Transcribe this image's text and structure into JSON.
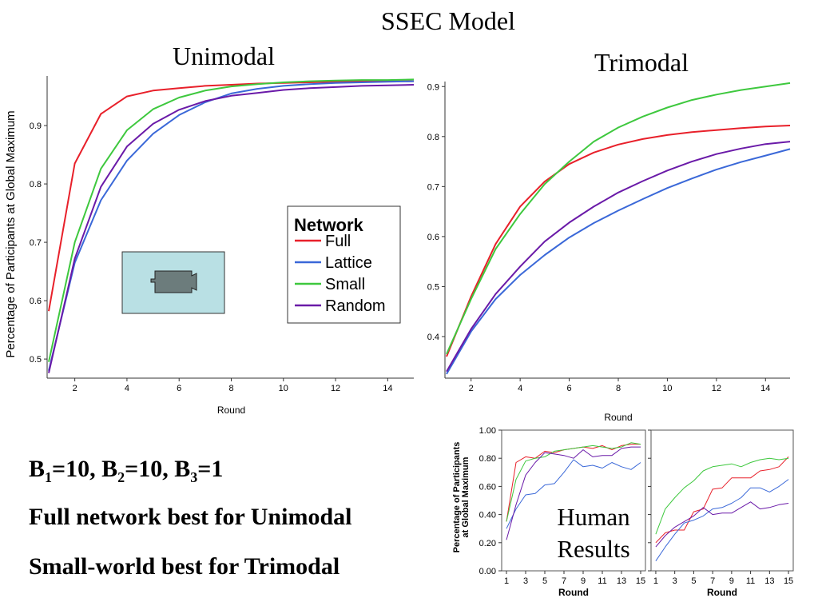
{
  "slide": {
    "title": "SSEC Model",
    "unimodal_title": "Unimodal",
    "trimodal_title": "Trimodal",
    "params": {
      "b1_label": "B",
      "b1_sub": "1",
      "b1_val": "=10, ",
      "b2_label": "B",
      "b2_sub": "2",
      "b2_val": "=10, ",
      "b3_label": "B",
      "b3_sub": "3",
      "b3_val": "=1"
    },
    "finding_1": "Full network best for Unimodal",
    "finding_2": "Small-world best for Trimodal",
    "human_line1": "Human",
    "human_line2": "Results"
  },
  "colors": {
    "Full": "#e8202a",
    "Lattice": "#3a68d8",
    "Small": "#3ec83e",
    "Random": "#6a1aa8",
    "film_box": "#b9e0e4",
    "camera": "#6c7c7c"
  },
  "icons": {
    "video": "video-camera-icon"
  },
  "chart_data": [
    {
      "type": "line",
      "name": "unimodal",
      "xlabel": "Round",
      "ylabel": "Percentage of Participants at Global Maximum",
      "xlim": [
        1,
        15
      ],
      "ylim": [
        0.47,
        0.985
      ],
      "xticks": [
        2,
        4,
        6,
        8,
        10,
        12,
        14
      ],
      "yticks": [
        0.5,
        0.6,
        0.7,
        0.8,
        0.9
      ],
      "legend_title": "Network",
      "legend_position": "center-right",
      "x": [
        1,
        2,
        3,
        4,
        5,
        6,
        7,
        8,
        9,
        10,
        11,
        12,
        13,
        14,
        15
      ],
      "series": [
        {
          "name": "Full",
          "values": [
            0.582,
            0.835,
            0.92,
            0.95,
            0.96,
            0.964,
            0.968,
            0.97,
            0.972,
            0.973,
            0.974,
            0.975,
            0.976,
            0.976,
            0.976
          ]
        },
        {
          "name": "Lattice",
          "values": [
            0.48,
            0.665,
            0.772,
            0.84,
            0.886,
            0.918,
            0.94,
            0.955,
            0.963,
            0.968,
            0.971,
            0.973,
            0.974,
            0.975,
            0.976
          ]
        },
        {
          "name": "Small",
          "values": [
            0.495,
            0.7,
            0.826,
            0.892,
            0.928,
            0.948,
            0.96,
            0.967,
            0.971,
            0.974,
            0.976,
            0.977,
            0.978,
            0.978,
            0.979
          ]
        },
        {
          "name": "Random",
          "values": [
            0.476,
            0.672,
            0.795,
            0.864,
            0.903,
            0.927,
            0.942,
            0.951,
            0.956,
            0.961,
            0.964,
            0.966,
            0.968,
            0.969,
            0.97
          ]
        }
      ]
    },
    {
      "type": "line",
      "name": "trimodal",
      "xlabel": "Round",
      "ylabel": "",
      "xlim": [
        1,
        15
      ],
      "ylim": [
        0.32,
        0.91
      ],
      "xticks": [
        2,
        4,
        6,
        8,
        10,
        12,
        14
      ],
      "yticks": [
        0.4,
        0.5,
        0.6,
        0.7,
        0.8,
        0.9
      ],
      "x": [
        1,
        2,
        3,
        4,
        5,
        6,
        7,
        8,
        9,
        10,
        11,
        12,
        13,
        14,
        15
      ],
      "series": [
        {
          "name": "Full",
          "values": [
            0.36,
            0.48,
            0.585,
            0.66,
            0.71,
            0.745,
            0.768,
            0.784,
            0.795,
            0.803,
            0.809,
            0.813,
            0.817,
            0.82,
            0.822
          ]
        },
        {
          "name": "Lattice",
          "values": [
            0.325,
            0.41,
            0.475,
            0.523,
            0.563,
            0.598,
            0.627,
            0.652,
            0.675,
            0.697,
            0.716,
            0.734,
            0.749,
            0.762,
            0.775
          ]
        },
        {
          "name": "Small",
          "values": [
            0.365,
            0.475,
            0.575,
            0.645,
            0.705,
            0.75,
            0.79,
            0.818,
            0.84,
            0.858,
            0.873,
            0.884,
            0.893,
            0.9,
            0.907
          ]
        },
        {
          "name": "Random",
          "values": [
            0.33,
            0.415,
            0.485,
            0.54,
            0.59,
            0.628,
            0.66,
            0.688,
            0.711,
            0.732,
            0.75,
            0.765,
            0.776,
            0.785,
            0.79
          ]
        }
      ]
    },
    {
      "type": "line",
      "name": "human-unimodal",
      "xlabel": "Round",
      "ylabel": "Percentage of Participants at Global Maximum",
      "xlim": [
        0.5,
        15.5
      ],
      "ylim": [
        0,
        1
      ],
      "xticks": [
        1,
        3,
        5,
        7,
        9,
        11,
        13,
        15
      ],
      "yticks": [
        0,
        0.2,
        0.4,
        0.6,
        0.8,
        1.0
      ],
      "yticklabels": [
        "0.00",
        "0.20",
        "0.40",
        "0.60",
        "0.80",
        "1.00"
      ],
      "x": [
        1,
        2,
        3,
        4,
        5,
        6,
        7,
        8,
        9,
        10,
        11,
        12,
        13,
        14,
        15
      ],
      "series": [
        {
          "name": "Full",
          "values": [
            0.35,
            0.77,
            0.81,
            0.8,
            0.85,
            0.84,
            0.86,
            0.87,
            0.88,
            0.87,
            0.89,
            0.86,
            0.89,
            0.9,
            0.9
          ]
        },
        {
          "name": "Lattice",
          "values": [
            0.3,
            0.44,
            0.54,
            0.55,
            0.61,
            0.62,
            0.7,
            0.79,
            0.74,
            0.75,
            0.73,
            0.77,
            0.74,
            0.72,
            0.77
          ]
        },
        {
          "name": "Small",
          "values": [
            0.35,
            0.65,
            0.78,
            0.8,
            0.81,
            0.85,
            0.86,
            0.87,
            0.88,
            0.89,
            0.88,
            0.87,
            0.88,
            0.91,
            0.9
          ]
        },
        {
          "name": "Random",
          "values": [
            0.22,
            0.47,
            0.68,
            0.77,
            0.84,
            0.83,
            0.82,
            0.8,
            0.86,
            0.81,
            0.82,
            0.82,
            0.87,
            0.88,
            0.88
          ]
        }
      ]
    },
    {
      "type": "line",
      "name": "human-trimodal",
      "xlabel": "Round",
      "ylabel": "",
      "xlim": [
        0.5,
        15.5
      ],
      "ylim": [
        0,
        1
      ],
      "xticks": [
        1,
        3,
        5,
        7,
        9,
        11,
        13,
        15
      ],
      "yticks": [
        0,
        0.2,
        0.4,
        0.6,
        0.8,
        1.0
      ],
      "x": [
        1,
        2,
        3,
        4,
        5,
        6,
        7,
        8,
        9,
        10,
        11,
        12,
        13,
        14,
        15
      ],
      "series": [
        {
          "name": "Full",
          "values": [
            0.2,
            0.27,
            0.29,
            0.29,
            0.42,
            0.44,
            0.58,
            0.59,
            0.66,
            0.66,
            0.66,
            0.71,
            0.72,
            0.74,
            0.81
          ]
        },
        {
          "name": "Lattice",
          "values": [
            0.07,
            0.17,
            0.26,
            0.34,
            0.36,
            0.39,
            0.44,
            0.45,
            0.48,
            0.52,
            0.59,
            0.59,
            0.56,
            0.6,
            0.65
          ]
        },
        {
          "name": "Small",
          "values": [
            0.26,
            0.44,
            0.52,
            0.59,
            0.64,
            0.71,
            0.74,
            0.75,
            0.76,
            0.74,
            0.77,
            0.79,
            0.8,
            0.79,
            0.8
          ]
        },
        {
          "name": "Random",
          "values": [
            0.17,
            0.25,
            0.31,
            0.35,
            0.39,
            0.45,
            0.4,
            0.41,
            0.41,
            0.45,
            0.49,
            0.44,
            0.45,
            0.47,
            0.48
          ]
        }
      ]
    }
  ]
}
